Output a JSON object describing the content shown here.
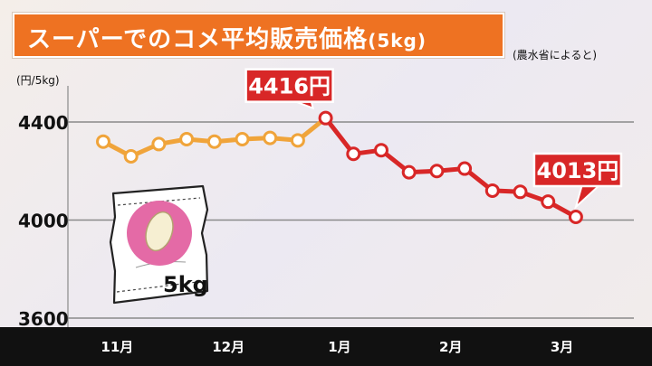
{
  "header": {
    "title": "スーパーでのコメ平均販売価格",
    "title_unit": "(5kg)",
    "source": "(農水省によると)"
  },
  "bag": {
    "label": "5kg"
  },
  "colors": {
    "title_bg": "#ee7222",
    "series_past": "#f0a43a",
    "series_recent": "#d82727",
    "axis_band": "#111111"
  },
  "chart_data": {
    "type": "line",
    "ylabel": "(円/5kg)",
    "yticks": [
      3600,
      4000,
      4400
    ],
    "ylim": [
      3600,
      4450
    ],
    "x_ticks": [
      "11月",
      "12月",
      "1月",
      "2月",
      "3月"
    ],
    "x_tick_positions": [
      0.5,
      4.5,
      8.5,
      12.5,
      16.5
    ],
    "series": [
      {
        "points": [
          4320,
          4260,
          4310,
          4330,
          4320,
          4330,
          4335,
          4325,
          4416,
          4270,
          4285,
          4195,
          4200,
          4210,
          4120,
          4115,
          4075,
          4013
        ],
        "color_change_index": 8
      }
    ],
    "annotations": [
      {
        "point_index": 8,
        "text": "4416円"
      },
      {
        "point_index": 17,
        "text": "4013円"
      }
    ]
  }
}
